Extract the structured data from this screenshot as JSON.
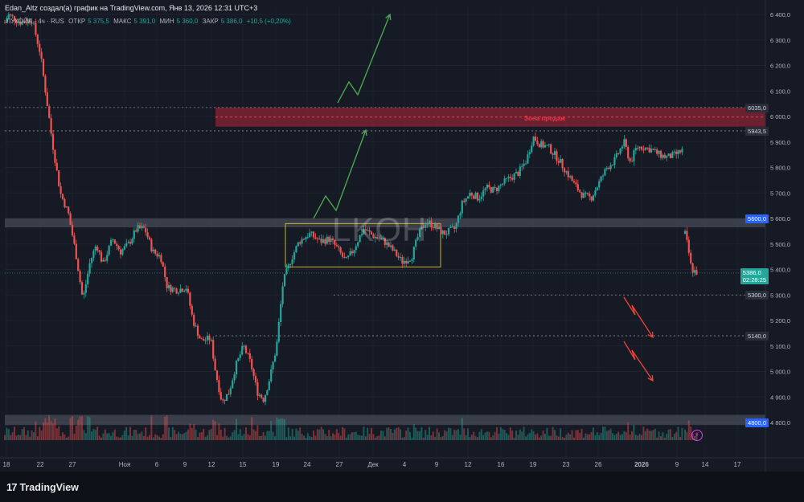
{
  "header": {
    "text": "Edan_Altz создал(а) график на TradingView.com, Янв 13, 2026 12:31 UTC+3"
  },
  "legend": {
    "symbol": "ЛУКОЙЛ · 4ч · RUS",
    "open_label": "ОТКР",
    "open": "5 375,5",
    "high_label": "МАКС",
    "high": "5 391,0",
    "low_label": "МИН",
    "low": "5 360,0",
    "close_label": "ЗАКР",
    "close": "5 386,0",
    "change": "+10,5 (+0,20%)"
  },
  "watermark": "LKOH",
  "zone_label": "Зона продаж",
  "price_tags": {
    "t6035": "6035,0",
    "t5943": "5943,5",
    "t5600": "5600,0",
    "current": "5386,0",
    "countdown": "02:28:25",
    "t5300": "5300,0",
    "t5140": "5140,0",
    "t4800": "4800,0"
  },
  "footer": {
    "brand": "TradingView",
    "logo": "17"
  },
  "colors": {
    "up": "#26a69a",
    "down": "#ef5350",
    "sell_zone": "#8b2333",
    "support_band": "#4a4e5a",
    "arrow_up": "#4caf50",
    "arrow_down": "#f44336",
    "range_box": "#c9b22a",
    "background": "#161a25"
  },
  "chart_data": {
    "type": "candlestick",
    "y_axis_ticks": [
      4800,
      4900,
      5000,
      5100,
      5200,
      5300,
      5400,
      5500,
      5600,
      5700,
      5800,
      5900,
      6000,
      6100,
      6200,
      6300,
      6400
    ],
    "ylim": [
      4760,
      6410
    ],
    "x_axis_labels": [
      "18",
      "22",
      "27",
      "Ноя",
      "6",
      "9",
      "12",
      "15",
      "19",
      "24",
      "27",
      "Дек",
      "4",
      "9",
      "12",
      "16",
      "19",
      "23",
      "26",
      "2026",
      "9",
      "14",
      "17"
    ],
    "path": [
      [
        0,
        6320
      ],
      [
        10,
        6400
      ],
      [
        25,
        6370
      ],
      [
        40,
        6380
      ],
      [
        50,
        6250
      ],
      [
        60,
        6020
      ],
      [
        65,
        5900
      ],
      [
        75,
        5700
      ],
      [
        85,
        5620
      ],
      [
        95,
        5450
      ],
      [
        103,
        5280
      ],
      [
        112,
        5430
      ],
      [
        120,
        5500
      ],
      [
        128,
        5420
      ],
      [
        140,
        5520
      ],
      [
        150,
        5470
      ],
      [
        160,
        5500
      ],
      [
        170,
        5560
      ],
      [
        180,
        5560
      ],
      [
        190,
        5470
      ],
      [
        200,
        5450
      ],
      [
        208,
        5330
      ],
      [
        220,
        5320
      ],
      [
        232,
        5330
      ],
      [
        240,
        5200
      ],
      [
        250,
        5120
      ],
      [
        262,
        5130
      ],
      [
        268,
        5000
      ],
      [
        276,
        4880
      ],
      [
        285,
        4920
      ],
      [
        293,
        5020
      ],
      [
        303,
        5100
      ],
      [
        312,
        5030
      ],
      [
        320,
        4920
      ],
      [
        328,
        4890
      ],
      [
        336,
        4980
      ],
      [
        344,
        5100
      ],
      [
        352,
        5350
      ],
      [
        362,
        5440
      ],
      [
        372,
        5510
      ],
      [
        385,
        5540
      ],
      [
        398,
        5510
      ],
      [
        410,
        5520
      ],
      [
        420,
        5480
      ],
      [
        430,
        5430
      ],
      [
        440,
        5480
      ],
      [
        452,
        5560
      ],
      [
        465,
        5530
      ],
      [
        478,
        5510
      ],
      [
        490,
        5470
      ],
      [
        500,
        5430
      ],
      [
        512,
        5450
      ],
      [
        520,
        5530
      ],
      [
        530,
        5590
      ],
      [
        540,
        5570
      ],
      [
        552,
        5540
      ],
      [
        566,
        5560
      ],
      [
        575,
        5660
      ],
      [
        585,
        5700
      ],
      [
        595,
        5680
      ],
      [
        605,
        5720
      ],
      [
        615,
        5710
      ],
      [
        630,
        5750
      ],
      [
        645,
        5780
      ],
      [
        655,
        5830
      ],
      [
        663,
        5920
      ],
      [
        672,
        5890
      ],
      [
        682,
        5880
      ],
      [
        695,
        5830
      ],
      [
        705,
        5780
      ],
      [
        715,
        5730
      ],
      [
        725,
        5690
      ],
      [
        735,
        5680
      ],
      [
        745,
        5740
      ],
      [
        755,
        5800
      ],
      [
        765,
        5830
      ],
      [
        776,
        5900
      ],
      [
        784,
        5820
      ],
      [
        792,
        5880
      ],
      [
        800,
        5880
      ],
      [
        810,
        5870
      ],
      [
        820,
        5850
      ],
      [
        830,
        5840
      ],
      [
        840,
        5850
      ],
      [
        850,
        5870
      ]
    ],
    "gap_segment": [
      [
        852,
        5540
      ],
      [
        856,
        5480
      ],
      [
        860,
        5400
      ],
      [
        868,
        5386
      ]
    ],
    "levels": [
      6035,
      5943.5,
      5300,
      5140
    ],
    "zones": [
      {
        "name": "Зона продаж",
        "from": 5960,
        "to": 6035
      },
      {
        "name": "support",
        "from": 5565,
        "to": 5600
      },
      {
        "name": "bottom",
        "from": 4790,
        "to": 4830
      }
    ],
    "range_box": {
      "from": 5410,
      "to": 5580
    }
  }
}
